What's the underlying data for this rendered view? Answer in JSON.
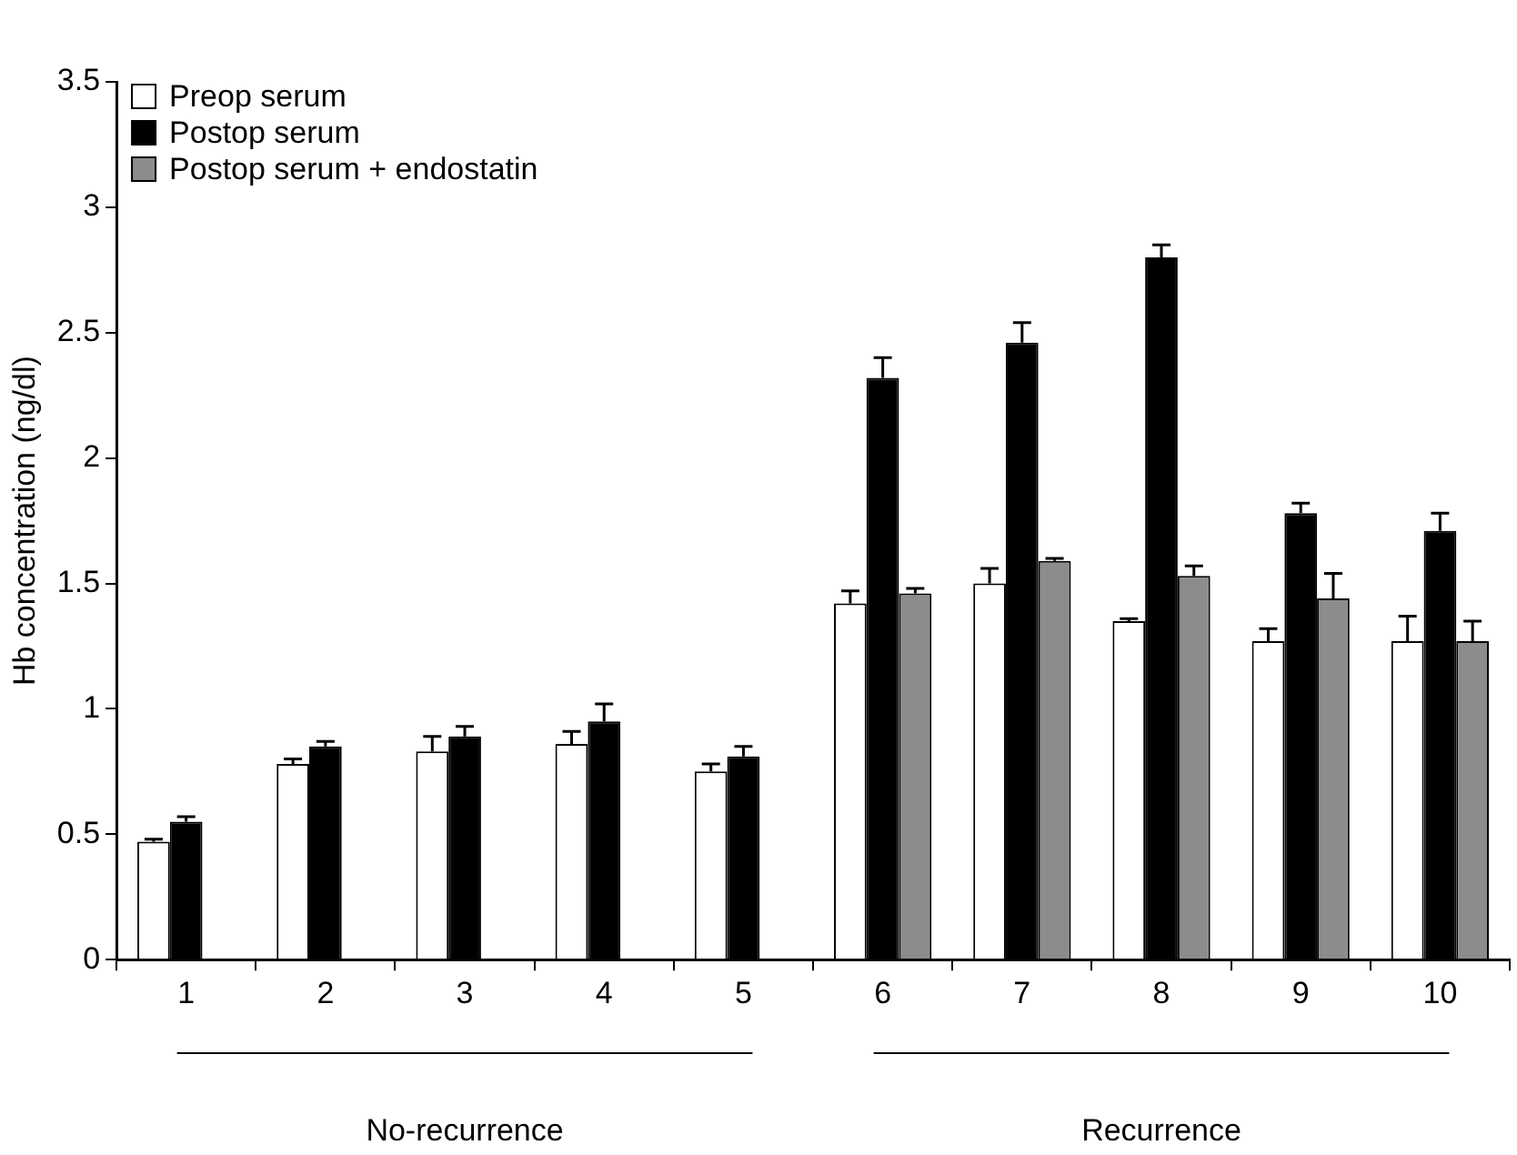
{
  "chart_data": {
    "type": "bar",
    "ylabel": "Hb concentration (ng/dl)",
    "categories": [
      "1",
      "2",
      "3",
      "4",
      "5",
      "6",
      "7",
      "8",
      "9",
      "10"
    ],
    "series": [
      {
        "name": "Preop serum",
        "color": "#ffffff",
        "values": [
          0.47,
          0.78,
          0.83,
          0.86,
          0.75,
          1.42,
          1.5,
          1.35,
          1.27,
          1.27
        ],
        "errors": [
          0.01,
          0.02,
          0.06,
          0.05,
          0.03,
          0.05,
          0.06,
          0.01,
          0.05,
          0.1
        ]
      },
      {
        "name": "Postop serum",
        "color": "#000000",
        "values": [
          0.55,
          0.85,
          0.89,
          0.95,
          0.81,
          2.32,
          2.46,
          2.8,
          1.78,
          1.71
        ],
        "errors": [
          0.02,
          0.02,
          0.04,
          0.07,
          0.04,
          0.08,
          0.08,
          0.05,
          0.04,
          0.07
        ]
      },
      {
        "name": "Postop serum + endostatin",
        "color": "#8c8c8c",
        "values": [
          null,
          null,
          null,
          null,
          null,
          1.46,
          1.59,
          1.53,
          1.44,
          1.27
        ],
        "errors": [
          null,
          null,
          null,
          null,
          null,
          0.02,
          0.01,
          0.04,
          0.1,
          0.08
        ]
      }
    ],
    "ylim": [
      0,
      3.5
    ],
    "yticks": [
      0,
      0.5,
      1,
      1.5,
      2,
      2.5,
      3,
      3.5
    ],
    "grid": false,
    "legend": "top left",
    "annotations": [
      "No-recurrence",
      "Recurrence"
    ]
  }
}
